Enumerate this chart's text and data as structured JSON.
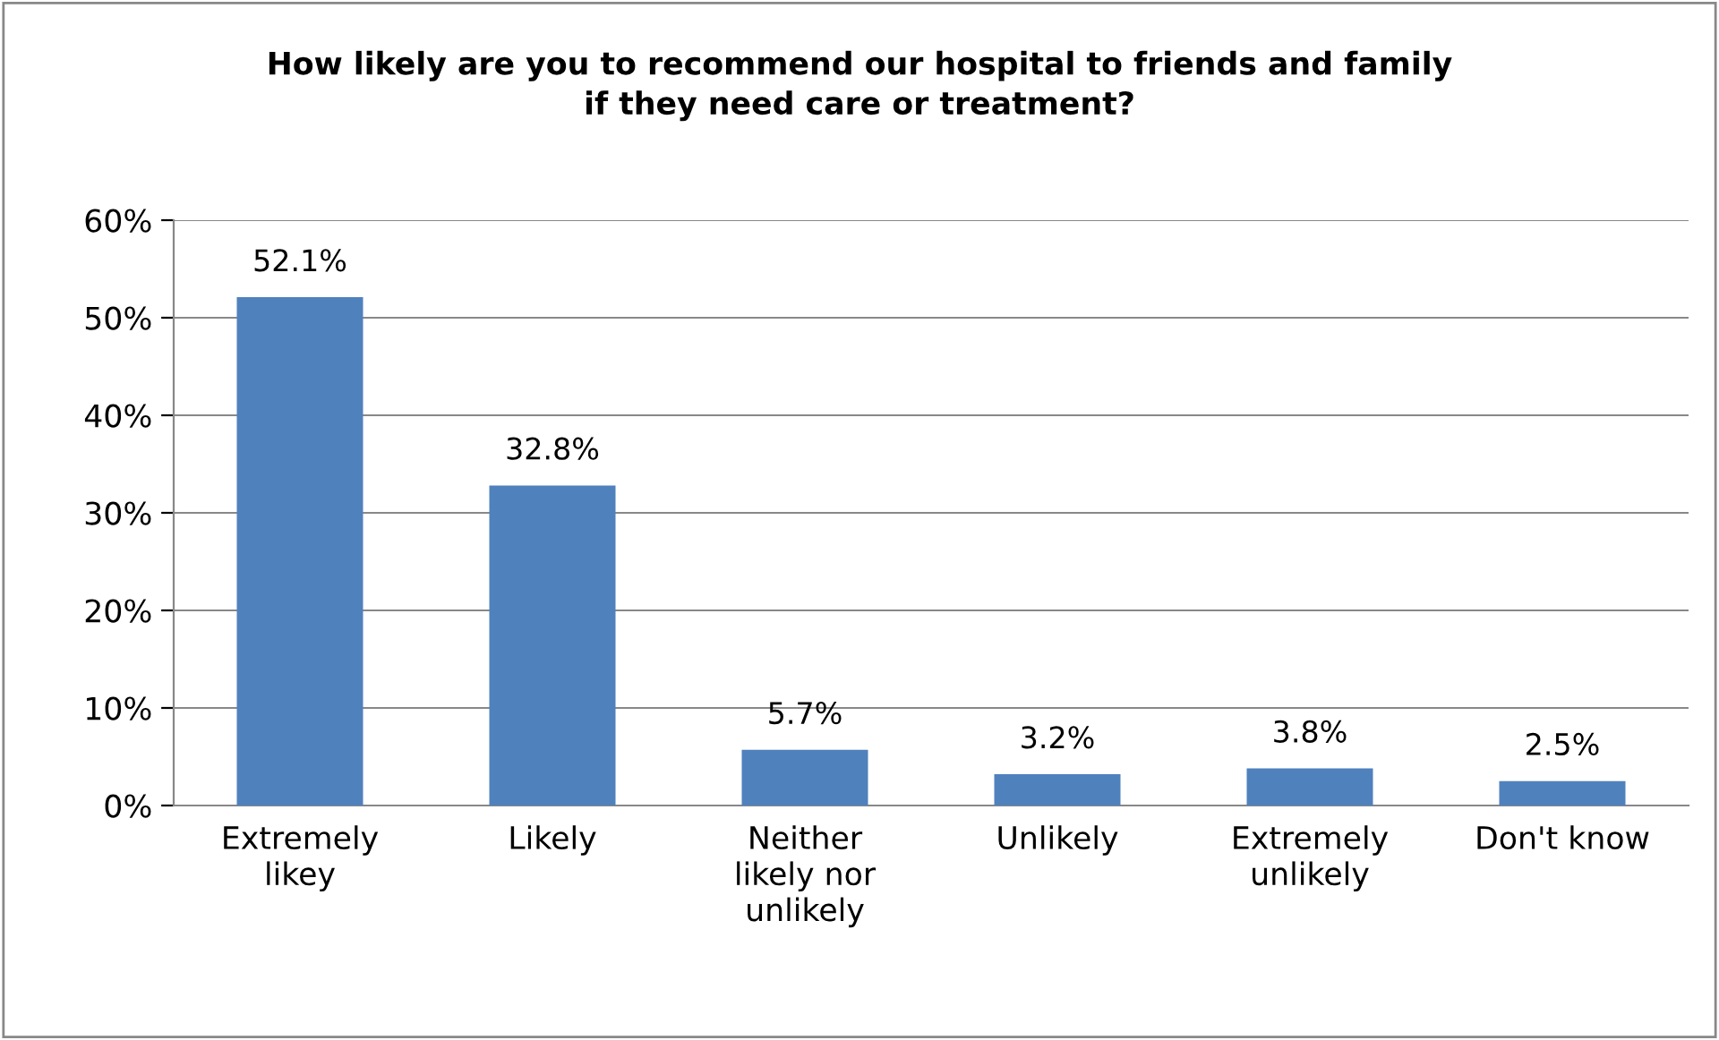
{
  "chart_data": {
    "type": "bar",
    "title": "How likely are you to recommend our hospital to friends and family\nif they need care or treatment?",
    "categories": [
      "Extremely\nlikey",
      "Likely",
      "Neither\nlikely nor\nunlikely",
      "Unlikely",
      "Extremely\nunlikely",
      "Don't know"
    ],
    "values": [
      52.1,
      32.8,
      5.7,
      3.2,
      3.8,
      2.5
    ],
    "value_labels": [
      "52.1%",
      "32.8%",
      "5.7%",
      "3.2%",
      "3.8%",
      "2.5%"
    ],
    "color": "#4f81bd",
    "ylim": [
      0,
      60
    ],
    "yticks": [
      {
        "value": 0,
        "label": "0%"
      },
      {
        "value": 10,
        "label": "10%"
      },
      {
        "value": 20,
        "label": "20%"
      },
      {
        "value": 30,
        "label": "30%"
      },
      {
        "value": 40,
        "label": "40%"
      },
      {
        "value": 50,
        "label": "50%"
      },
      {
        "value": 60,
        "label": "60%"
      }
    ],
    "grid": "y",
    "legend": false
  }
}
